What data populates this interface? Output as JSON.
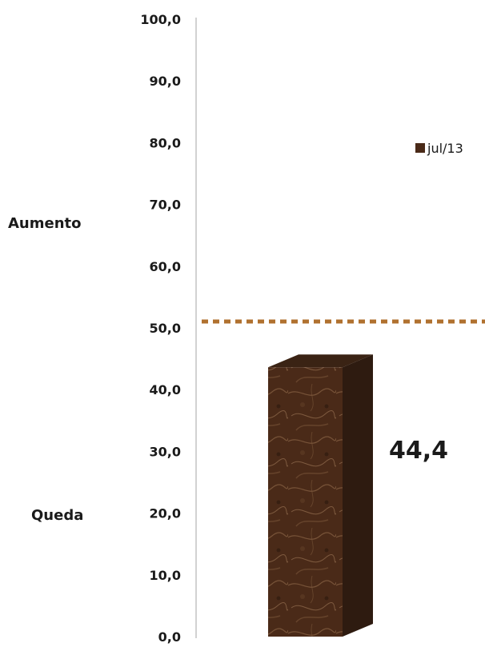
{
  "chart_data": {
    "type": "bar",
    "categories": [
      "jul/13"
    ],
    "series": [
      {
        "name": "jul/13",
        "values": [
          44.4
        ]
      }
    ],
    "data_labels": [
      "44,4"
    ],
    "ylim": [
      0,
      100
    ],
    "yticks": [
      0,
      10,
      20,
      30,
      40,
      50,
      60,
      70,
      80,
      90,
      100
    ],
    "ytick_labels": [
      "0,0",
      "10,0",
      "20,0",
      "30,0",
      "40,0",
      "50,0",
      "60,0",
      "70,0",
      "80,0",
      "90,0",
      "100,0"
    ],
    "reference_line": {
      "value": 50,
      "style": "dotted"
    },
    "side_labels": {
      "upper": "Aumento",
      "lower": "Queda"
    },
    "legend": {
      "position": "right",
      "entries": [
        "jul/13"
      ]
    },
    "grid": false,
    "colors": {
      "bar_front": "#4a2a18",
      "bar_side": "#2e1b10",
      "bar_top": "#3a2314",
      "reference_line": "#b0712f",
      "axis": "#a6a6a6",
      "legend_swatch": "#4a2a18"
    }
  }
}
